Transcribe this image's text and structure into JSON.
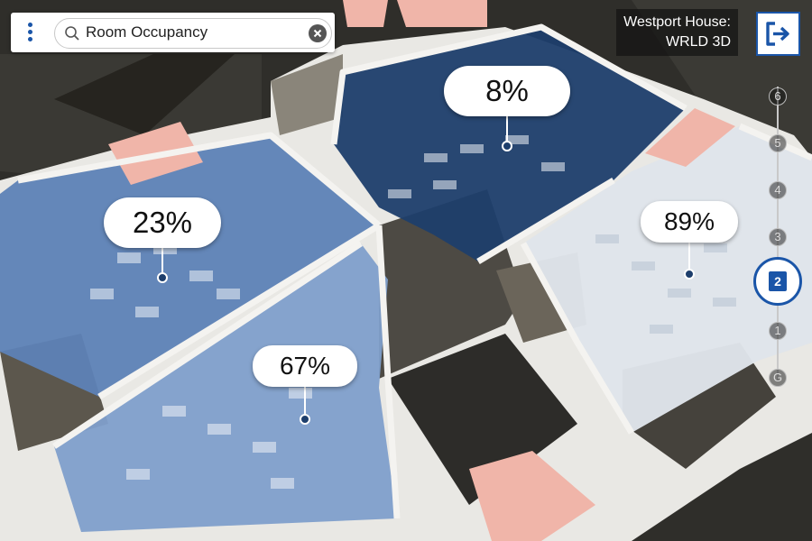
{
  "search": {
    "value": "Room Occupancy",
    "menu_icon": "vertical-dots-icon",
    "search_icon": "magnifier-icon",
    "clear_icon": "clear-icon"
  },
  "building": {
    "name": "Westport House:",
    "subtitle": "WRLD 3D"
  },
  "exit_icon": "exit-interior-icon",
  "rooms": [
    {
      "id": "room-left",
      "occupancy": "23%",
      "color": "#5d82b6"
    },
    {
      "id": "room-center",
      "occupancy": "67%",
      "color": "#7f9fcb"
    },
    {
      "id": "room-top",
      "occupancy": "8%",
      "color": "#1d3e6c"
    },
    {
      "id": "room-right",
      "occupancy": "89%",
      "color": "#dfe4ea"
    }
  ],
  "floors": {
    "labels": [
      "6",
      "5",
      "4",
      "3",
      "2",
      "1",
      "G"
    ],
    "selected": "2"
  },
  "colors": {
    "accent": "#1a55a8",
    "highlight_room": "#f0b5a9"
  }
}
